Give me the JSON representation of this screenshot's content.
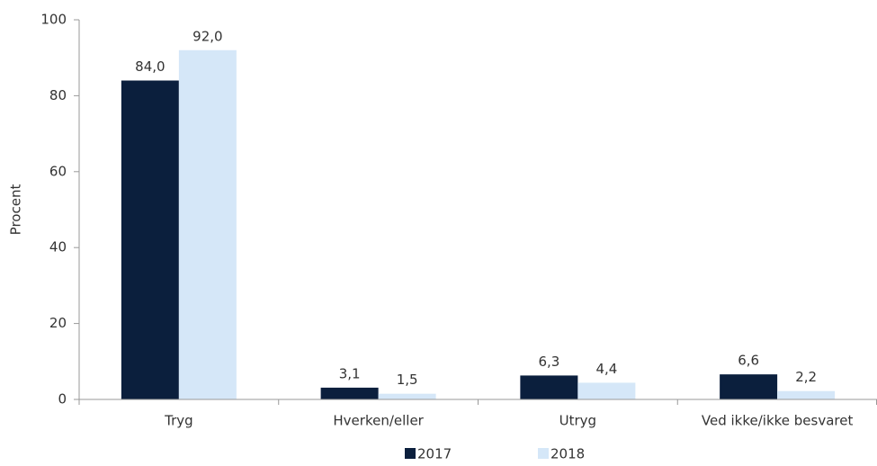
{
  "chart_data": {
    "type": "bar",
    "categories": [
      "Tryg",
      "Hverken/eller",
      "Utryg",
      "Ved ikke/ikke besvaret"
    ],
    "series": [
      {
        "name": "2017",
        "color": "#0b1f3d",
        "values": [
          84.0,
          3.1,
          6.3,
          6.6
        ],
        "value_labels": [
          "84,0",
          "3,1",
          "6,3",
          "6,6"
        ]
      },
      {
        "name": "2018",
        "color": "#d5e7f8",
        "values": [
          92.0,
          1.5,
          4.4,
          2.2
        ],
        "value_labels": [
          "92,0",
          "1,5",
          "4,4",
          "2,2"
        ]
      }
    ],
    "ylabel": "Procent",
    "ylim": [
      0,
      100
    ],
    "yticks": [
      0,
      20,
      40,
      60,
      80,
      100
    ],
    "grid": false,
    "legend": "bottom"
  }
}
